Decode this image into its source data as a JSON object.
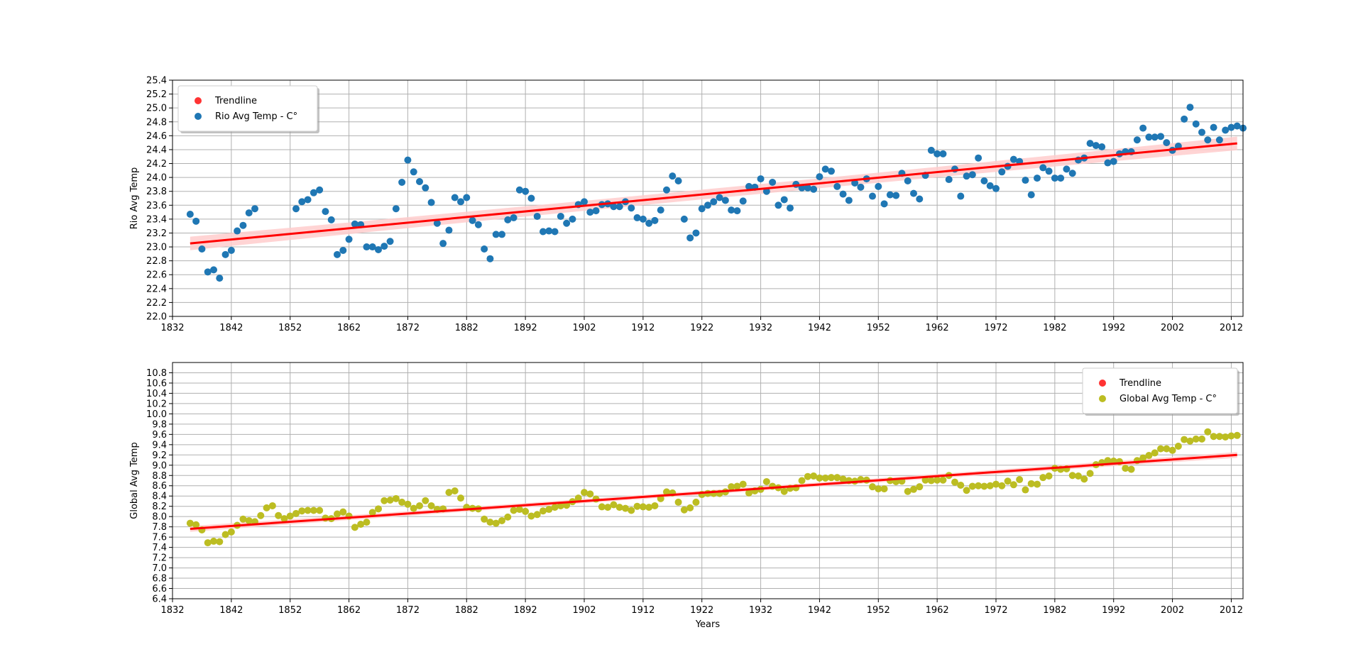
{
  "chart_data": [
    {
      "type": "scatter",
      "xlabel": "",
      "ylabel": "Rio Avg Temp",
      "xlim": [
        1832,
        2014
      ],
      "ylim": [
        22.0,
        25.4
      ],
      "xticks": [
        1832,
        1842,
        1852,
        1862,
        1872,
        1882,
        1892,
        1902,
        1912,
        1922,
        1932,
        1942,
        1952,
        1962,
        1972,
        1982,
        1992,
        2002,
        2012
      ],
      "yticks": [
        22.0,
        22.2,
        22.4,
        22.6,
        22.8,
        23.0,
        23.2,
        23.4,
        23.6,
        23.8,
        24.0,
        24.2,
        24.4,
        24.6,
        24.8,
        25.0,
        25.2,
        25.4
      ],
      "grid": true,
      "legend_position": "top-left",
      "legend": [
        "Trendline",
        "Rio Avg Temp - C°"
      ],
      "point_color": "#1f77b4",
      "trend_color": "#ff0000",
      "band_color": "#ffcccc",
      "trendline": {
        "x": [
          1835,
          2013
        ],
        "y": [
          23.05,
          24.49
        ],
        "band": 0.07
      },
      "series": [
        {
          "name": "Rio Avg Temp - C°",
          "x_start": 1835,
          "values": [
            23.47,
            23.37,
            22.97,
            22.64,
            22.67,
            22.55,
            22.89,
            22.95,
            23.23,
            23.31,
            23.49,
            23.55,
            null,
            null,
            null,
            null,
            null,
            null,
            23.55,
            23.65,
            23.68,
            23.78,
            23.82,
            23.51,
            23.39,
            22.89,
            22.95,
            23.11,
            23.33,
            23.32,
            23.0,
            23.0,
            22.96,
            23.01,
            23.08,
            23.55,
            23.93,
            24.25,
            24.08,
            23.94,
            23.85,
            23.64,
            23.34,
            23.05,
            23.24,
            23.71,
            23.65,
            23.71,
            23.38,
            23.32,
            22.97,
            22.83,
            23.18,
            23.18,
            23.39,
            23.42,
            23.82,
            23.8,
            23.7,
            23.44,
            23.22,
            23.23,
            23.22,
            23.44,
            23.34,
            23.4,
            23.61,
            23.65,
            23.5,
            23.52,
            23.61,
            23.62,
            23.58,
            23.58,
            23.65,
            23.56,
            23.42,
            23.4,
            23.34,
            23.38,
            23.53,
            23.82,
            24.02,
            23.95,
            23.4,
            23.13,
            23.2,
            23.55,
            23.6,
            23.65,
            23.71,
            23.67,
            23.53,
            23.52,
            23.66,
            23.87,
            23.86,
            23.98,
            23.8,
            23.93,
            23.6,
            23.68,
            23.56,
            23.9,
            23.85,
            23.85,
            23.83,
            24.01,
            24.12,
            24.09,
            23.87,
            23.76,
            23.67,
            23.92,
            23.86,
            23.98,
            23.73,
            23.87,
            23.62,
            23.75,
            23.74,
            24.06,
            23.95,
            23.77,
            23.69,
            24.03,
            24.39,
            24.34,
            24.34,
            23.97,
            24.12,
            23.73,
            24.02,
            24.04,
            24.28,
            23.95,
            23.88,
            23.84,
            24.08,
            24.16,
            24.26,
            24.23,
            23.96,
            23.75,
            23.99,
            24.14,
            24.09,
            23.99,
            23.99,
            24.12,
            24.06,
            24.25,
            24.28,
            24.49,
            24.46,
            24.44,
            24.21,
            24.23,
            24.34,
            24.37,
            24.37,
            24.54,
            24.71,
            24.58,
            24.58,
            24.59,
            24.5,
            24.39,
            24.45,
            24.84,
            25.01,
            24.77,
            24.65,
            24.54,
            24.72,
            24.54,
            24.68,
            24.72,
            24.74,
            24.71
          ]
        }
      ]
    },
    {
      "type": "scatter",
      "xlabel": "Years",
      "ylabel": "Global Avg Temp",
      "xlim": [
        1832,
        2014
      ],
      "ylim": [
        6.4,
        11.0
      ],
      "xticks": [
        1832,
        1842,
        1852,
        1862,
        1872,
        1882,
        1892,
        1902,
        1912,
        1922,
        1932,
        1942,
        1952,
        1962,
        1972,
        1982,
        1992,
        2002,
        2012
      ],
      "yticks": [
        6.4,
        6.6,
        6.8,
        7.0,
        7.2,
        7.4,
        7.6,
        7.8,
        8.0,
        8.2,
        8.4,
        8.6,
        8.8,
        9.0,
        9.2,
        9.4,
        9.6,
        9.8,
        10.0,
        10.2,
        10.4,
        10.6,
        10.8
      ],
      "grid": true,
      "legend_position": "top-right",
      "legend": [
        "Trendline",
        "Global Avg Temp - C°"
      ],
      "point_color": "#bcbd22",
      "trend_color": "#ff0000",
      "band_color": "#ffcccc",
      "trendline": {
        "x": [
          1835,
          2013
        ],
        "y": [
          7.76,
          9.2
        ],
        "band": 0.04
      },
      "series": [
        {
          "name": "Global Avg Temp - C°",
          "x_start": 1835,
          "values": [
            7.87,
            7.84,
            7.74,
            7.49,
            7.52,
            7.51,
            7.65,
            7.7,
            7.83,
            7.95,
            7.92,
            7.9,
            8.02,
            8.17,
            8.21,
            8.02,
            7.96,
            8.01,
            8.06,
            8.11,
            8.12,
            8.12,
            8.12,
            7.97,
            7.96,
            8.05,
            8.09,
            8.01,
            7.79,
            7.85,
            7.89,
            8.08,
            8.15,
            8.31,
            8.32,
            8.35,
            8.28,
            8.24,
            8.16,
            8.21,
            8.31,
            8.21,
            8.14,
            8.15,
            8.47,
            8.5,
            8.36,
            8.18,
            8.16,
            8.15,
            7.95,
            7.89,
            7.87,
            7.92,
            7.99,
            8.12,
            8.14,
            8.1,
            8.01,
            8.04,
            8.11,
            8.14,
            8.18,
            8.21,
            8.22,
            8.29,
            8.36,
            8.47,
            8.44,
            8.34,
            8.19,
            8.18,
            8.23,
            8.18,
            8.16,
            8.12,
            8.2,
            8.19,
            8.18,
            8.21,
            8.35,
            8.48,
            8.46,
            8.28,
            8.13,
            8.17,
            8.28,
            8.43,
            8.45,
            8.45,
            8.45,
            8.48,
            8.58,
            8.59,
            8.63,
            8.46,
            8.5,
            8.53,
            8.68,
            8.59,
            8.56,
            8.49,
            8.55,
            8.56,
            8.7,
            8.78,
            8.79,
            8.75,
            8.75,
            8.76,
            8.76,
            8.73,
            8.7,
            8.69,
            8.72,
            8.71,
            8.58,
            8.54,
            8.54,
            8.7,
            8.68,
            8.69,
            8.49,
            8.53,
            8.58,
            8.71,
            8.7,
            8.71,
            8.71,
            8.8,
            8.67,
            8.61,
            8.51,
            8.59,
            8.6,
            8.59,
            8.6,
            8.63,
            8.6,
            8.69,
            8.62,
            8.72,
            8.52,
            8.64,
            8.63,
            8.76,
            8.79,
            8.94,
            8.92,
            8.93,
            8.8,
            8.79,
            8.73,
            8.84,
            9.01,
            9.05,
            9.09,
            9.08,
            9.07,
            8.94,
            8.92,
            9.09,
            9.14,
            9.19,
            9.24,
            9.32,
            9.32,
            9.29,
            9.37,
            9.5,
            9.47,
            9.51,
            9.51,
            9.65,
            9.56,
            9.56,
            9.55,
            9.57,
            9.58
          ]
        }
      ]
    }
  ]
}
